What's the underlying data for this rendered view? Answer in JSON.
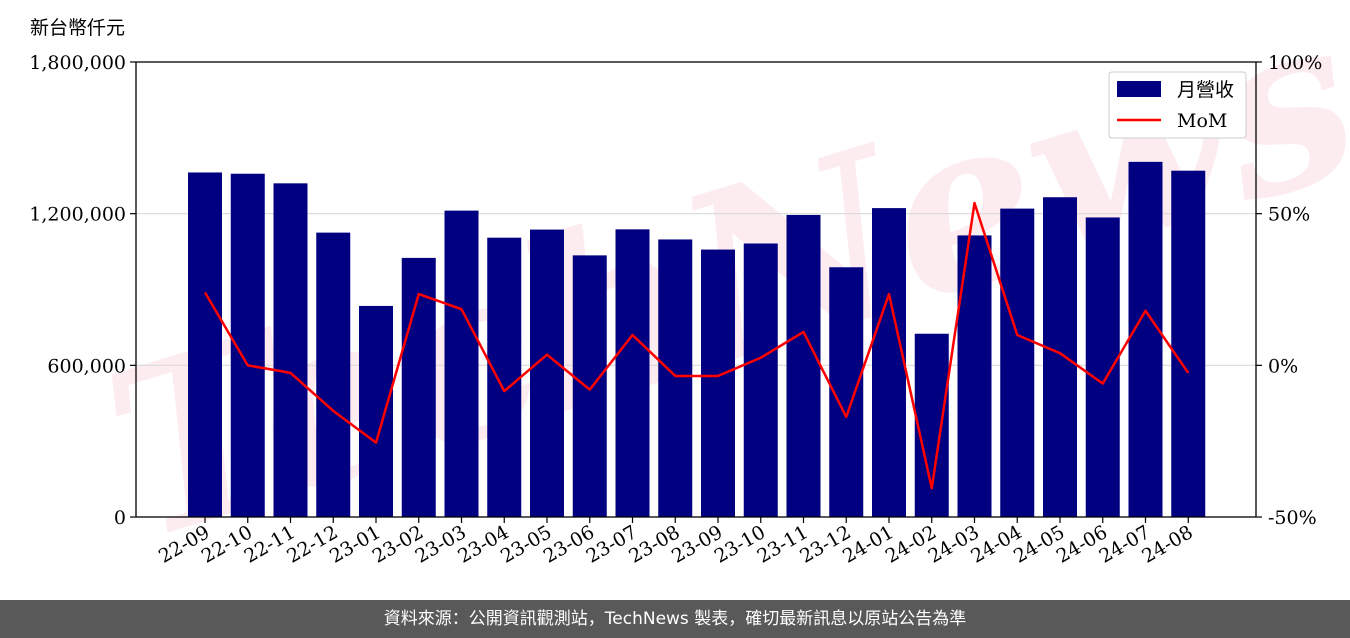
{
  "chart_data": {
    "type": "bar",
    "y_unit_label": "新台幣仟元",
    "categories": [
      "22-09",
      "22-10",
      "22-11",
      "22-12",
      "23-01",
      "23-02",
      "23-03",
      "23-04",
      "23-05",
      "23-06",
      "23-07",
      "23-08",
      "23-09",
      "23-10",
      "23-11",
      "23-12",
      "24-01",
      "24-02",
      "24-03",
      "24-04",
      "24-05",
      "24-06",
      "24-07",
      "24-08"
    ],
    "series": [
      {
        "name": "月營收",
        "type": "bar",
        "axis": "left",
        "color": "#000080",
        "values": [
          1363000,
          1358000,
          1320000,
          1125000,
          835000,
          1025000,
          1212000,
          1105000,
          1137000,
          1035000,
          1138000,
          1098000,
          1058000,
          1082000,
          1195000,
          988000,
          1222000,
          725000,
          1114000,
          1220000,
          1265000,
          1185000,
          1405000,
          1370000
        ]
      },
      {
        "name": "MoM",
        "type": "line",
        "axis": "right",
        "color": "#ff0000",
        "values": [
          24,
          0,
          -2.5,
          -15,
          -25.5,
          23.5,
          18.5,
          -8.5,
          3.5,
          -8,
          10,
          -3.5,
          -3.5,
          2.5,
          11,
          -17,
          23.5,
          -40.5,
          53.5,
          10,
          4,
          -6,
          18,
          -2.5
        ]
      }
    ],
    "y_left": {
      "min": 0,
      "max": 1800000,
      "ticks": [
        "0",
        "600,000",
        "1,200,000",
        "1,800,000"
      ],
      "tick_values": [
        0,
        600000,
        1200000,
        1800000
      ]
    },
    "y_right": {
      "min": -50,
      "max": 100,
      "ticks": [
        "-50%",
        "0%",
        "50%",
        "100%"
      ],
      "tick_values": [
        -50,
        0,
        50,
        100
      ]
    },
    "grid": true,
    "legend_placement": "top-right",
    "watermark": "TechNews"
  },
  "footer": {
    "source_note": "資料來源：公開資訊觀測站，TechNews 製表，確切最新訊息以原站公告為準"
  }
}
